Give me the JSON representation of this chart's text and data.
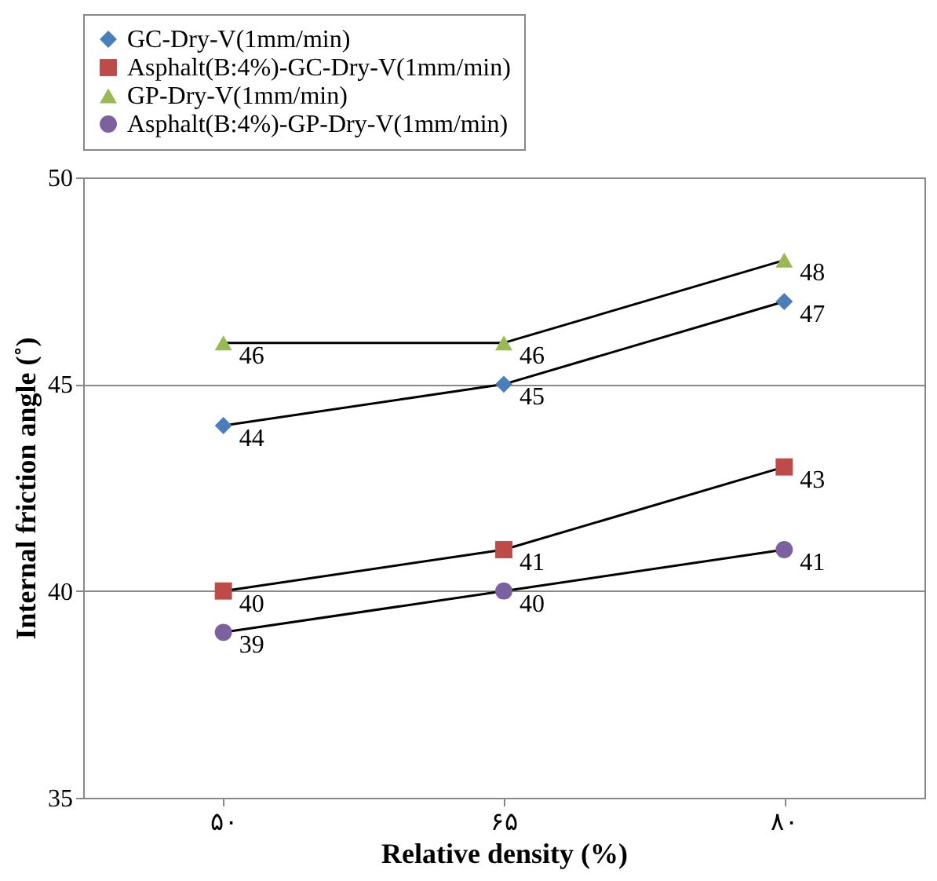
{
  "chart_data": {
    "type": "line",
    "xlabel": "Relative density (%)",
    "ylabel": "Internal friction angle (˚)",
    "categories": [
      "۵۰",
      "۶۵",
      "۸۰"
    ],
    "series": [
      {
        "name": "GC-Dry-V(1mm/min)",
        "color": "#4a7ebb",
        "marker": "diamond",
        "values": [
          44,
          45,
          47
        ]
      },
      {
        "name": "Asphalt(B:4%)-GC-Dry-V(1mm/min)",
        "color": "#be4b48",
        "marker": "square",
        "values": [
          40,
          41,
          43
        ]
      },
      {
        "name": "GP-Dry-V(1mm/min)",
        "color": "#98b954",
        "marker": "triangle",
        "values": [
          46,
          46,
          48
        ]
      },
      {
        "name": "Asphalt(B:4%)-GP-Dry-V(1mm/min)",
        "color": "#7d60a0",
        "marker": "circle",
        "values": [
          39,
          40,
          41
        ]
      }
    ],
    "ylim": [
      35,
      50
    ],
    "yticks": [
      35,
      40,
      45,
      50
    ],
    "grid": "y",
    "legend": "top",
    "data_labels": true
  }
}
